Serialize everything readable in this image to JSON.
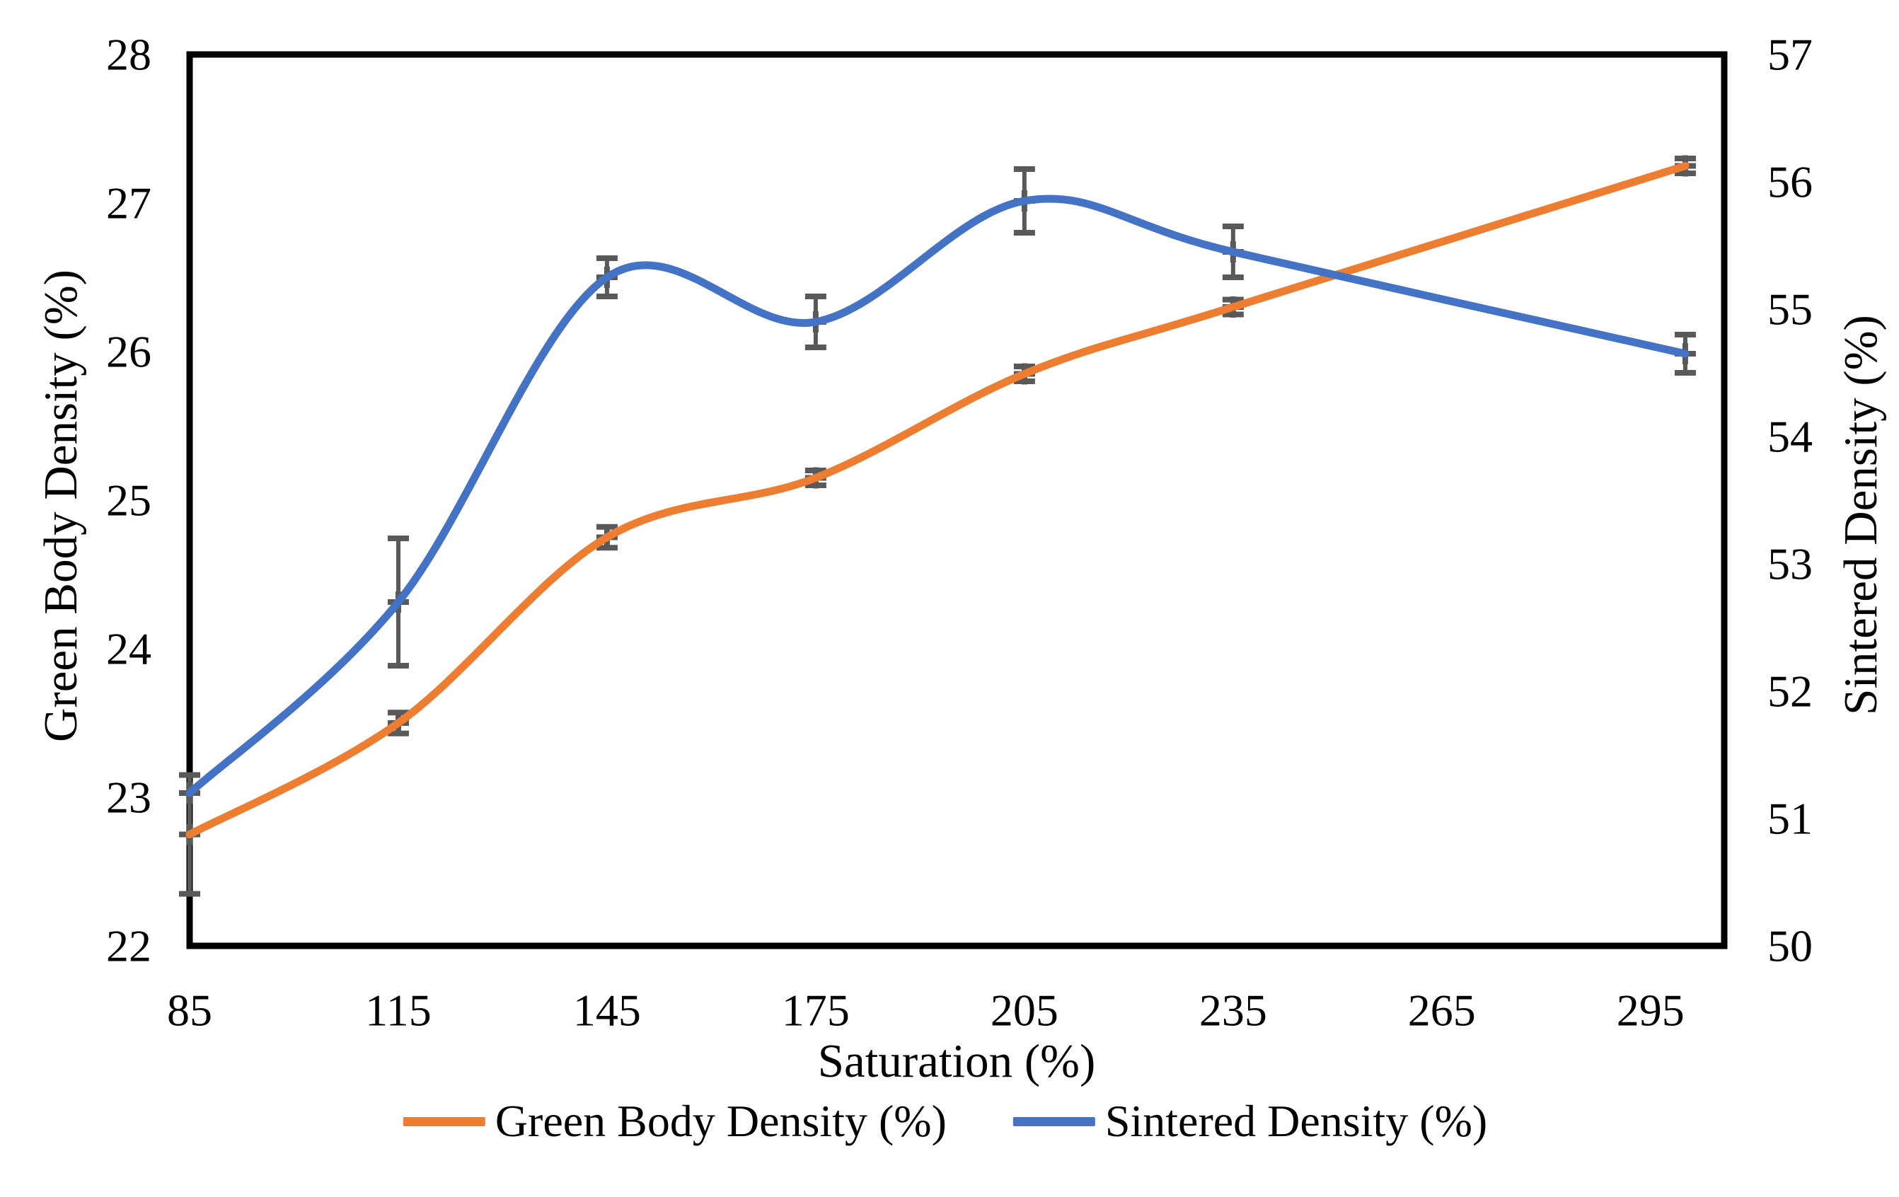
{
  "chart_data": {
    "type": "line",
    "title": "",
    "xlabel": "Saturation (%)",
    "x_tick_labels": [
      "85",
      "115",
      "145",
      "175",
      "205",
      "235",
      "265",
      "295"
    ],
    "x_ticks": [
      85,
      115,
      145,
      175,
      205,
      235,
      265,
      295
    ],
    "x_axis_range": [
      85,
      305.6
    ],
    "grid": false,
    "legend_position": "bottom",
    "marker": "plus",
    "marker_color": "#595959",
    "error_bar_color": "#595959",
    "axes": {
      "left": {
        "label": "Green Body Density (%)",
        "range": [
          22,
          28
        ],
        "tick_step": 1,
        "tick_labels": [
          "22",
          "23",
          "24",
          "25",
          "26",
          "27",
          "28"
        ]
      },
      "right": {
        "label": "Sintered Density (%)",
        "range": [
          50,
          57
        ],
        "tick_step": 1,
        "tick_labels": [
          "50",
          "51",
          "52",
          "53",
          "54",
          "55",
          "56",
          "57"
        ]
      }
    },
    "series": [
      {
        "name": "Green Body Density (%)",
        "axis": "left",
        "color": "#ED7D31",
        "x": [
          85,
          115,
          145,
          175,
          205,
          235,
          300
        ],
        "values": [
          22.75,
          23.5,
          24.75,
          25.15,
          25.85,
          26.3,
          27.25
        ],
        "errors": [
          0.4,
          0.07,
          0.07,
          0.05,
          0.05,
          0.05,
          0.05
        ]
      },
      {
        "name": "Sintered Density (%)",
        "axis": "right",
        "color": "#4472C4",
        "x": [
          85,
          115,
          145,
          175,
          205,
          235,
          300
        ],
        "values": [
          51.2,
          52.7,
          55.25,
          54.9,
          55.85,
          55.45,
          54.65
        ],
        "errors": [
          0,
          0.5,
          0.15,
          0.2,
          0.25,
          0.2,
          0.15
        ]
      }
    ]
  },
  "legend": {
    "items": [
      {
        "label": "Green Body Density (%)",
        "color": "#ED7D31"
      },
      {
        "label": "Sintered Density (%)",
        "color": "#4472C4"
      }
    ]
  }
}
